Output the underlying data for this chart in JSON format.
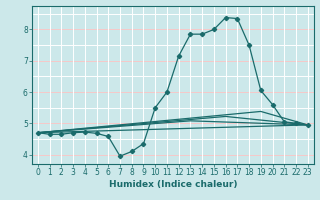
{
  "bg_color": "#cce8ea",
  "grid_color_white": "#ffffff",
  "grid_color_red": "#e88080",
  "line_color": "#1a6b6b",
  "xlabel": "Humidex (Indice chaleur)",
  "xlim": [
    -0.5,
    23.5
  ],
  "ylim": [
    3.7,
    8.75
  ],
  "yticks": [
    4,
    5,
    6,
    7,
    8
  ],
  "xticks": [
    0,
    1,
    2,
    3,
    4,
    5,
    6,
    7,
    8,
    9,
    10,
    11,
    12,
    13,
    14,
    15,
    16,
    17,
    18,
    19,
    20,
    21,
    22,
    23
  ],
  "main_x": [
    0,
    1,
    2,
    3,
    4,
    5,
    6,
    7,
    8,
    9,
    10,
    11,
    12,
    13,
    14,
    15,
    16,
    17,
    18,
    19,
    20,
    21,
    22,
    23
  ],
  "main_y": [
    4.7,
    4.65,
    4.65,
    4.7,
    4.72,
    4.68,
    4.58,
    3.95,
    4.1,
    4.35,
    5.5,
    6.0,
    7.15,
    7.85,
    7.85,
    8.0,
    8.38,
    8.35,
    7.5,
    6.05,
    5.6,
    5.05,
    5.0,
    4.95
  ],
  "line2_x": [
    0,
    23
  ],
  "line2_y": [
    4.7,
    4.95
  ],
  "line3_x": [
    0,
    13,
    23
  ],
  "line3_y": [
    4.7,
    5.08,
    4.95
  ],
  "line4_x": [
    0,
    16,
    23
  ],
  "line4_y": [
    4.7,
    5.22,
    4.95
  ],
  "line5_x": [
    0,
    19,
    23
  ],
  "line5_y": [
    4.7,
    5.38,
    4.95
  ],
  "tick_fontsize": 5.5,
  "xlabel_fontsize": 6.5
}
